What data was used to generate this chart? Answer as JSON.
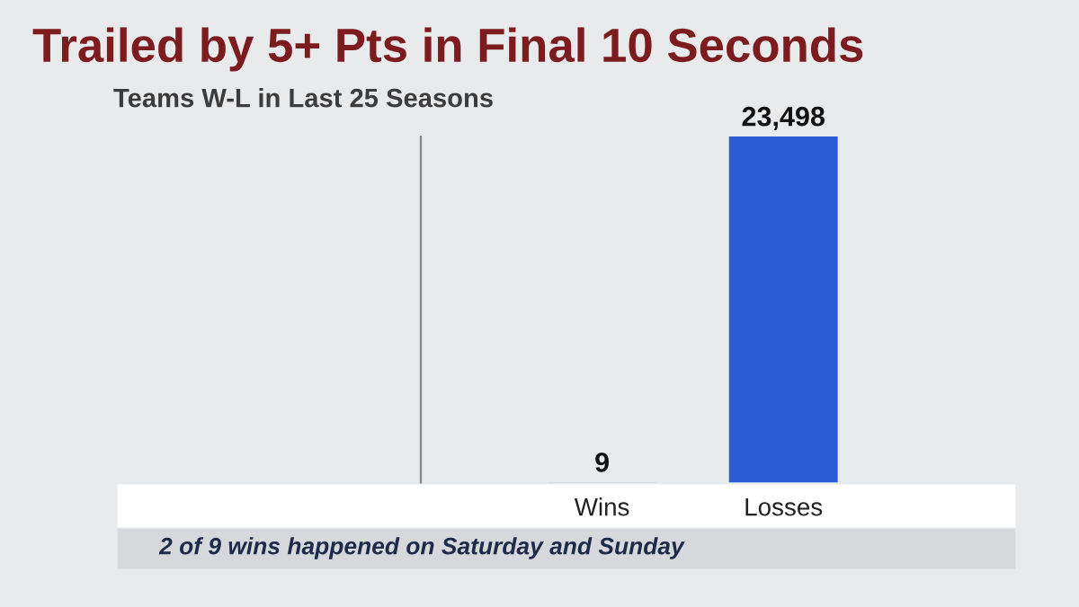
{
  "chart_data": {
    "type": "bar",
    "title": "Trailed by 5+ Pts in Final 10 Seconds",
    "subtitle": "Teams W-L in Last 25 Seasons",
    "categories": [
      "Wins",
      "Losses"
    ],
    "values": [
      9,
      23498
    ],
    "color": "#2b5bd6",
    "data_labels": true,
    "value_labels": [
      "9",
      "23,498"
    ],
    "annotations": [
      "2 of 9 wins happened on Saturday and Sunday"
    ]
  }
}
